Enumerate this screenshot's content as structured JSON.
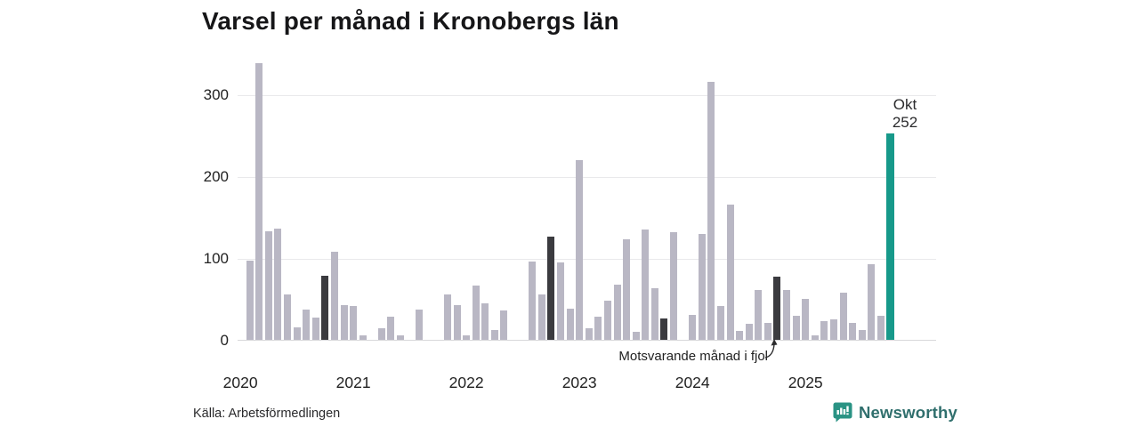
{
  "title": "Varsel per månad i Kronobergs län",
  "source": "Källa: Arbetsförmedlingen",
  "branding": {
    "name": "Newsworthy",
    "icon": "newsworthy-speech-bubble-bar-chart-icon"
  },
  "colors": {
    "bar": "#b9b7c4",
    "bar_dark": "#3b3b3f",
    "bar_accent": "#17998a",
    "gridline": "#e9e9eb",
    "baseline": "#d8d8db",
    "brand_icon": "#2a9384",
    "brand_text": "#306f6d"
  },
  "chart_data": {
    "type": "bar",
    "title": "Varsel per månad i Kronobergs län",
    "xlabel": "",
    "ylabel": "",
    "ylim": [
      0,
      350
    ],
    "yticks": [
      0,
      100,
      200,
      300
    ],
    "grid": true,
    "legend_position": "none",
    "year_labels": [
      "2020",
      "2021",
      "2022",
      "2023",
      "2024",
      "2025"
    ],
    "x": [
      "2020-02",
      "2020-03",
      "2020-04",
      "2020-05",
      "2020-06",
      "2020-07",
      "2020-08",
      "2020-09",
      "2020-10",
      "2020-11",
      "2020-12",
      "2021-01",
      "2021-02",
      "2021-03",
      "2021-04",
      "2021-05",
      "2021-06",
      "2021-07",
      "2021-08",
      "2021-09",
      "2021-10",
      "2021-11",
      "2021-12",
      "2022-01",
      "2022-02",
      "2022-03",
      "2022-04",
      "2022-05",
      "2022-06",
      "2022-07",
      "2022-08",
      "2022-09",
      "2022-10",
      "2022-11",
      "2022-12",
      "2023-01",
      "2023-02",
      "2023-03",
      "2023-04",
      "2023-05",
      "2023-06",
      "2023-07",
      "2023-08",
      "2023-09",
      "2023-10",
      "2023-11",
      "2023-12",
      "2024-01",
      "2024-02",
      "2024-03",
      "2024-04",
      "2024-05",
      "2024-06",
      "2024-07",
      "2024-08",
      "2024-09",
      "2024-10",
      "2024-11",
      "2024-12",
      "2025-01",
      "2025-02",
      "2025-03",
      "2025-04",
      "2025-05",
      "2025-06",
      "2025-07",
      "2025-08",
      "2025-09",
      "2025-10"
    ],
    "values": [
      97,
      338,
      133,
      136,
      56,
      15,
      37,
      27,
      78,
      108,
      42,
      41,
      6,
      0,
      14,
      28,
      6,
      0,
      37,
      0,
      0,
      56,
      42,
      6,
      66,
      45,
      12,
      36,
      0,
      0,
      96,
      56,
      126,
      95,
      38,
      220,
      14,
      28,
      48,
      67,
      123,
      10,
      135,
      63,
      26,
      132,
      0,
      31,
      129,
      316,
      41,
      165,
      11,
      20,
      61,
      21,
      77,
      61,
      29,
      50,
      5,
      23,
      25,
      58,
      21,
      12,
      92,
      29,
      252
    ],
    "highlight_dark": [
      "2020-10",
      "2021-10",
      "2022-10",
      "2023-10",
      "2024-10"
    ],
    "highlight_accent": "2025-10",
    "annotations": {
      "last_point": {
        "label": "Okt",
        "value": "252"
      },
      "comparison": "Motsvarande månad i fjol"
    }
  }
}
